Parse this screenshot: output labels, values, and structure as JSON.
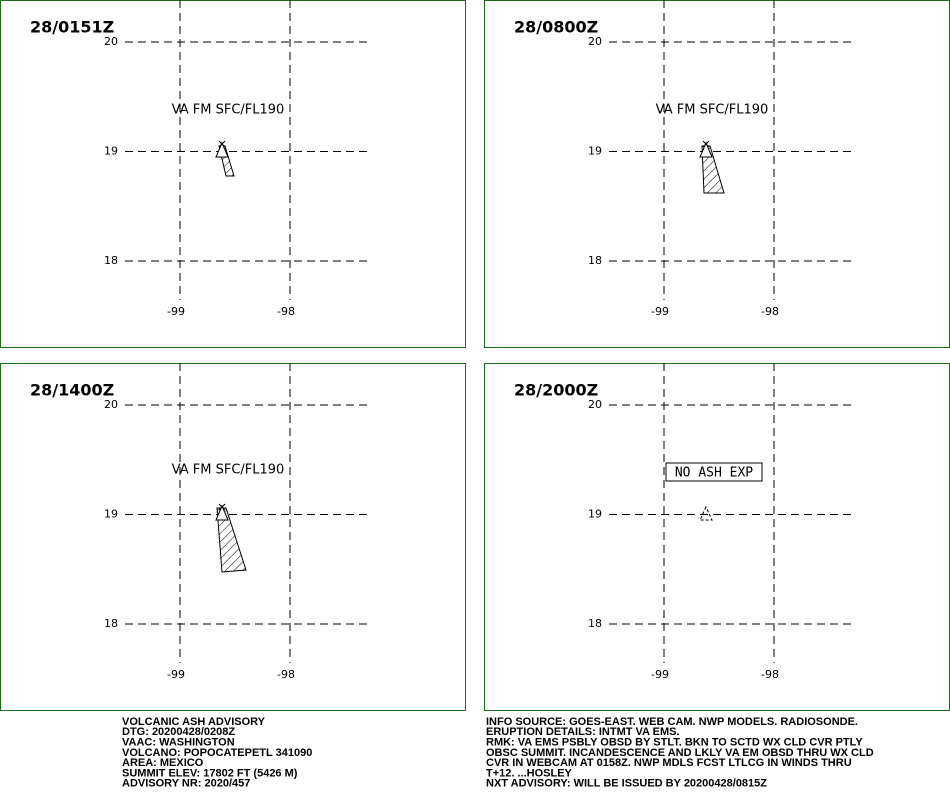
{
  "panels": [
    {
      "time": "28/0151Z",
      "label": "VA FM SFC/FL190"
    },
    {
      "time": "28/0800Z",
      "label": "VA FM SFC/FL190"
    },
    {
      "time": "28/1400Z",
      "label": "VA FM SFC/FL190"
    },
    {
      "time": "28/2000Z",
      "label": "NO ASH EXP"
    }
  ],
  "lat_ticks": [
    20,
    19,
    18
  ],
  "lon_ticks": [
    -99,
    -98
  ],
  "advisory_left": [
    "VOLCANIC ASH ADVISORY",
    "DTG: 20200428/0208Z",
    "VAAC: WASHINGTON",
    "VOLCANO: POPOCATEPETL 341090",
    "AREA: MEXICO",
    "SUMMIT ELEV: 17802 FT (5426 M)",
    "ADVISORY NR: 2020/457"
  ],
  "advisory_right": [
    "INFO SOURCE: GOES-EAST. WEB CAM. NWP MODELS. RADIOSONDE.",
    "ERUPTION DETAILS: INTMT VA EMS.",
    "RMK: VA EMS PSBLY OBSD BY STLT. BKN TO SCTD WX CLD CVR PTLY",
    "OBSC SUMMIT. INCANDESCENCE AND LKLY VA EM OBSD THRU WX CLD",
    "CVR IN WEBCAM AT 0158Z. NWP MDLS FCST LTLCG IN WINDS THRU",
    "T+12. ...HOSLEY",
    "NXT ADVISORY: WILL BE ISSUED BY 20200428/0815Z"
  ]
}
